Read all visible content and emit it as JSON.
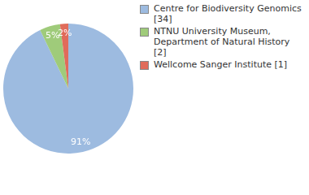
{
  "chart_data": {
    "type": "pie",
    "categories": [
      "Centre for Biodiversity Genomics [34]",
      "NTNU University Museum, Department of Natural History [2]",
      "Wellcome Sanger Institute [1]"
    ],
    "values": [
      91,
      5,
      2
    ],
    "value_labels": [
      "91%",
      "5%",
      "2%"
    ],
    "colors": [
      "#9dbbe0",
      "#9fcb7a",
      "#e06b5a"
    ],
    "data_labels": true,
    "legend": "top-right"
  }
}
